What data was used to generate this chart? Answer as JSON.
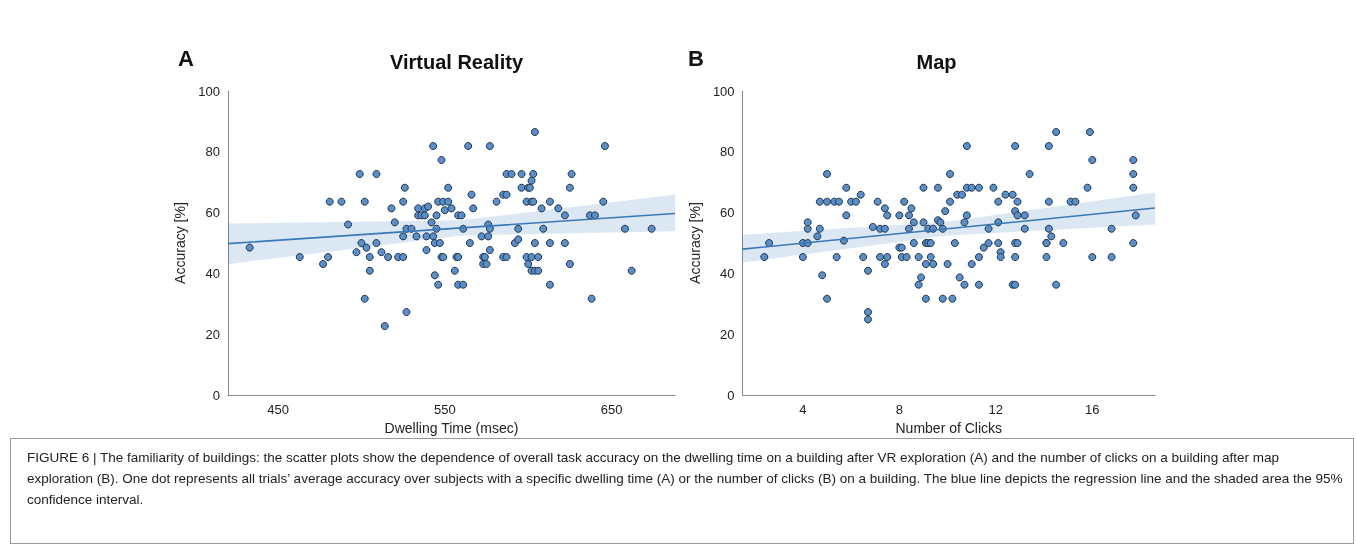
{
  "chart_data": [
    {
      "type": "scatter",
      "title": "Virtual Reality",
      "xlabel": "Dwelling Time (msec)",
      "ylabel": "Accuracy [%]",
      "annotations": [
        "A"
      ],
      "xlim": [
        420,
        688
      ],
      "ylim": [
        0,
        100
      ],
      "xticks": [
        450,
        550,
        650
      ],
      "yticks": [
        0,
        20,
        40,
        60,
        80,
        100
      ],
      "grid": false,
      "series": [
        {
          "marker": "circle",
          "color": "#5b8fc7",
          "x": [
            433,
            463,
            477,
            480,
            481,
            488,
            492,
            497,
            499,
            500,
            502,
            502,
            503,
            505,
            505,
            509,
            509,
            512,
            514,
            516,
            518,
            520,
            522,
            525,
            525,
            525,
            526,
            527,
            527,
            530,
            533,
            534,
            534,
            536,
            538,
            538,
            539,
            539,
            540,
            542,
            543,
            543,
            544,
            544,
            545,
            545,
            546,
            546,
            547,
            548,
            548,
            549,
            549,
            550,
            552,
            552,
            554,
            556,
            557,
            558,
            558,
            558,
            560,
            561,
            561,
            564,
            565,
            566,
            567,
            572,
            573,
            573,
            574,
            575,
            576,
            576,
            577,
            577,
            577,
            581,
            585,
            585,
            587,
            587,
            587,
            590,
            592,
            594,
            594,
            596,
            596,
            599,
            600,
            600,
            599,
            601,
            602,
            602,
            602,
            602,
            603,
            603,
            604,
            604,
            604,
            606,
            606,
            608,
            609,
            613,
            613,
            613,
            618,
            622,
            622,
            625,
            625,
            626,
            637,
            638,
            640,
            645,
            646,
            658,
            662,
            674
          ],
          "values": [
            48.5,
            45.4,
            43.1,
            45.4,
            63.6,
            63.6,
            56.1,
            47.0,
            72.7,
            50.0,
            63.6,
            31.7,
            48.5,
            40.9,
            45.4,
            50.0,
            72.7,
            47.0,
            22.7,
            45.4,
            61.4,
            56.8,
            45.4,
            63.6,
            52.2,
            45.4,
            68.2,
            27.3,
            54.7,
            54.7,
            52.2,
            59.1,
            61.4,
            59.1,
            59.1,
            61.4,
            52.2,
            47.7,
            62.0,
            56.8,
            81.9,
            52.2,
            39.4,
            50.0,
            59.1,
            54.7,
            36.3,
            63.6,
            50.0,
            77.3,
            45.4,
            63.6,
            45.4,
            60.8,
            63.6,
            68.2,
            61.4,
            40.9,
            45.4,
            45.4,
            36.3,
            59.1,
            59.1,
            36.3,
            54.7,
            81.9,
            50.0,
            65.9,
            61.4,
            52.2,
            45.4,
            43.1,
            45.4,
            43.1,
            56.1,
            52.2,
            54.7,
            81.9,
            47.7,
            63.6,
            45.4,
            65.9,
            65.9,
            45.4,
            72.7,
            72.7,
            50.0,
            54.7,
            51.2,
            72.7,
            68.2,
            63.6,
            43.1,
            68.2,
            45.4,
            68.2,
            63.6,
            45.4,
            40.9,
            70.5,
            72.7,
            63.6,
            50.0,
            40.9,
            86.5,
            45.4,
            40.9,
            61.4,
            54.7,
            50.0,
            63.6,
            36.3,
            61.4,
            59.1,
            50.0,
            68.2,
            43.1,
            72.7,
            59.1,
            31.7,
            59.1,
            63.6,
            81.9,
            54.7,
            40.9,
            54.7
          ]
        },
        {
          "type": "line",
          "marker": "none",
          "color": "#3a78b8",
          "x": [
            420,
            560,
            688
          ],
          "values": [
            49.8,
            55.0,
            59.7
          ],
          "lower": [
            43.1,
            52.5,
            53.9
          ],
          "upper": [
            56.4,
            57.5,
            65.9
          ]
        }
      ]
    },
    {
      "type": "scatter",
      "title": "Map",
      "xlabel": "Number of Clicks",
      "ylabel": "Accuracy [%]",
      "annotations": [
        "B",
        "FIGURE 6 | The familiarity of buildings: the scatter plots show the dependence of overall task accuracy on the dwelling time on a building after VR exploration (A) and the number of clicks on a building after map exploration (B). One dot represents all trials’ average accuracy over subjects with a specific dwelling time (A) or the number of clicks (B) on a building. The blue line depicts the regression line and the shaded area the 95% confidence interval."
      ],
      "xlim": [
        1.5,
        18.6
      ],
      "ylim": [
        0,
        100
      ],
      "xticks": [
        4,
        8,
        12,
        16
      ],
      "yticks": [
        0,
        20,
        40,
        60,
        80,
        100
      ],
      "grid": false,
      "series": [
        {
          "marker": "circle",
          "color": "#5b8fc7",
          "x": [
            2.4,
            2.6,
            4.0,
            4.0,
            4.2,
            4.2,
            4.2,
            4.6,
            4.7,
            4.7,
            4.8,
            5.0,
            5.0,
            5.0,
            5.3,
            5.4,
            5.5,
            5.7,
            5.8,
            5.8,
            6.0,
            6.2,
            6.4,
            6.5,
            6.7,
            6.7,
            6.7,
            6.9,
            7.1,
            7.2,
            7.2,
            7.4,
            7.4,
            7.4,
            7.5,
            7.5,
            8.0,
            8.0,
            8.1,
            8.1,
            8.2,
            8.3,
            8.4,
            8.4,
            8.5,
            8.6,
            8.6,
            8.8,
            8.9,
            8.8,
            9.0,
            9.0,
            9.1,
            9.1,
            9.1,
            9.2,
            9.2,
            9.3,
            9.3,
            9.4,
            9.4,
            9.6,
            9.6,
            9.7,
            9.8,
            9.8,
            9.9,
            10.0,
            10.1,
            10.1,
            10.2,
            10.3,
            10.4,
            10.5,
            10.6,
            10.7,
            10.7,
            10.8,
            10.8,
            10.8,
            11.0,
            11.0,
            11.3,
            11.3,
            11.3,
            11.5,
            11.7,
            11.7,
            11.9,
            12.1,
            12.1,
            12.1,
            12.2,
            12.2,
            12.4,
            12.7,
            12.7,
            12.8,
            12.8,
            12.8,
            12.8,
            12.8,
            12.9,
            12.9,
            12.9,
            13.2,
            13.2,
            13.4,
            14.1,
            14.1,
            14.1,
            14.2,
            14.2,
            14.2,
            14.3,
            14.5,
            14.5,
            14.8,
            15.1,
            15.3,
            15.8,
            15.9,
            16.0,
            16.0,
            16.8,
            16.8,
            17.7,
            17.7,
            17.7,
            17.8,
            17.7
          ],
          "values": [
            45.4,
            50.0,
            50.0,
            45.4,
            50.0,
            54.7,
            56.8,
            52.2,
            63.6,
            54.7,
            39.4,
            72.7,
            63.6,
            31.7,
            63.6,
            45.4,
            63.6,
            50.8,
            68.2,
            59.1,
            63.6,
            63.6,
            65.9,
            45.4,
            24.9,
            40.9,
            27.3,
            55.3,
            63.6,
            54.7,
            45.4,
            61.4,
            54.7,
            43.1,
            59.1,
            45.4,
            59.1,
            48.5,
            48.5,
            45.4,
            63.6,
            45.4,
            59.1,
            54.7,
            61.4,
            50.0,
            56.8,
            45.4,
            38.7,
            36.3,
            56.8,
            68.2,
            50.0,
            43.1,
            31.7,
            54.7,
            50.0,
            45.4,
            50.0,
            54.7,
            43.1,
            68.2,
            57.5,
            56.8,
            54.7,
            31.7,
            60.5,
            43.1,
            72.7,
            63.6,
            31.7,
            50.0,
            65.9,
            38.7,
            65.9,
            36.3,
            56.8,
            59.1,
            81.9,
            68.2,
            68.2,
            43.1,
            36.3,
            45.4,
            68.2,
            48.5,
            54.7,
            50.0,
            68.2,
            63.6,
            56.8,
            50.0,
            47.0,
            45.4,
            65.9,
            65.9,
            36.3,
            60.5,
            50.0,
            81.9,
            45.4,
            36.3,
            50.0,
            63.6,
            59.1,
            59.1,
            54.7,
            72.7,
            45.4,
            50.0,
            50.0,
            63.6,
            81.9,
            54.7,
            52.2,
            86.5,
            36.3,
            50.0,
            63.6,
            63.6,
            68.2,
            86.5,
            77.3,
            45.4,
            54.7,
            45.4,
            77.3,
            72.7,
            68.2,
            59.1,
            50.0
          ]
        },
        {
          "type": "line",
          "marker": "none",
          "color": "#3a78b8",
          "x": [
            1.5,
            10,
            18.6
          ],
          "values": [
            48.0,
            54.7,
            61.5
          ],
          "lower": [
            43.6,
            52.5,
            56.1
          ],
          "upper": [
            52.7,
            57.0,
            66.6
          ]
        }
      ]
    }
  ]
}
